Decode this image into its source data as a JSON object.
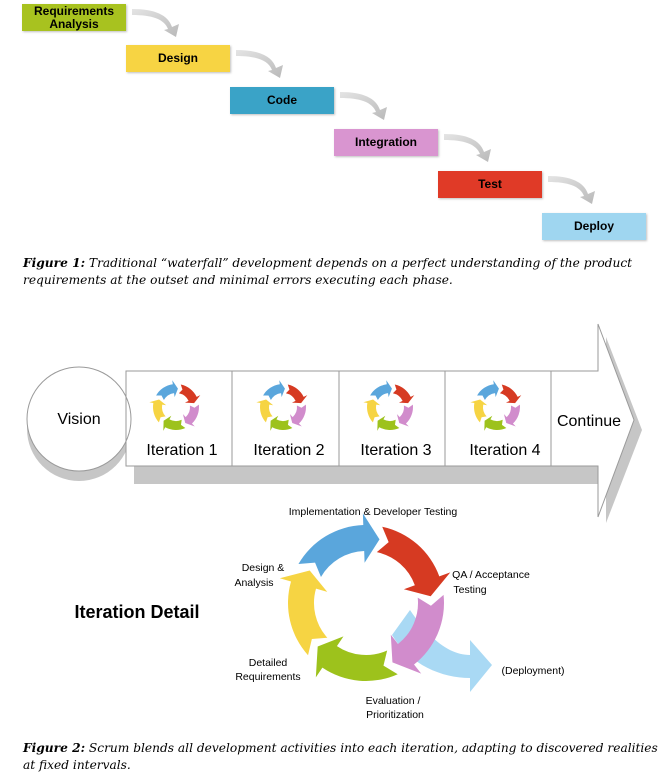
{
  "figure1": {
    "phases": [
      {
        "label": "Requirements Analysis",
        "color": "#a8c21f"
      },
      {
        "label": "Design",
        "color": "#f7d443"
      },
      {
        "label": "Code",
        "color": "#3aa3c7"
      },
      {
        "label": "Integration",
        "color": "#d995d0"
      },
      {
        "label": "Test",
        "color": "#e03a27"
      },
      {
        "label": "Deploy",
        "color": "#9fd6f0"
      }
    ],
    "caption_label": "Figure 1:",
    "caption_text": " Traditional “waterfall” development depends on a perfect understanding of the product requirements at the outset and minimal errors executing each phase."
  },
  "figure2": {
    "vision_label": "Vision",
    "iterations": [
      "Iteration 1",
      "Iteration 2",
      "Iteration 3",
      "Iteration 4"
    ],
    "continue_label": "Continue",
    "detail_title": "Iteration Detail",
    "cycle_labels": {
      "implementation": "Implementation & Developer Testing",
      "qa_line1": "QA / Acceptance",
      "qa_line2": "Testing",
      "design_line1": "Design &",
      "design_line2": "Analysis",
      "detailed_line1": "Detailed",
      "detailed_line2": "Requirements",
      "evaluation_line1": "Evaluation /",
      "evaluation_line2": "Prioritization",
      "deployment": "(Deployment)"
    },
    "cycle_colors": {
      "blue": "#5aa6dc",
      "red": "#d63a22",
      "pink": "#d18ccc",
      "green": "#9dc21c",
      "yellow": "#f6d443",
      "light_blue": "#a9d9f4"
    },
    "caption_label": "Figure 2:",
    "caption_text": " Scrum blends all development activities into each iteration, adapting to discovered realities at fixed intervals."
  }
}
